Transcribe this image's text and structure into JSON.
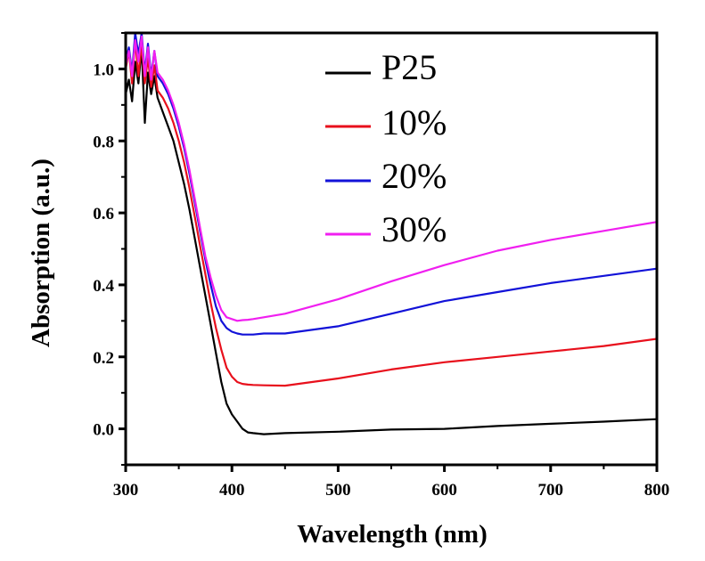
{
  "chart_data": {
    "type": "line",
    "title": "",
    "xlabel": "Wavelength (nm)",
    "ylabel": "Absorption (a.u.)",
    "xlim": [
      300,
      800
    ],
    "ylim": [
      -0.1,
      1.1
    ],
    "x_ticks": [
      300,
      400,
      500,
      600,
      700,
      800
    ],
    "x_tick_labels": [
      "300",
      "400",
      "500",
      "600",
      "700",
      "800"
    ],
    "y_ticks": [
      0.0,
      0.2,
      0.4,
      0.6,
      0.8,
      1.0
    ],
    "y_tick_labels": [
      "0.0",
      "0.2",
      "0.4",
      "0.6",
      "0.8",
      "1.0"
    ],
    "grid": false,
    "legend_position": "top-center",
    "series": [
      {
        "name": "P25",
        "color": "#000000",
        "x": [
          300,
          303,
          306,
          309,
          312,
          315,
          318,
          321,
          324,
          327,
          330,
          335,
          340,
          345,
          350,
          355,
          360,
          365,
          370,
          375,
          380,
          385,
          390,
          395,
          400,
          405,
          410,
          415,
          420,
          430,
          450,
          500,
          550,
          600,
          650,
          700,
          750,
          800
        ],
        "y": [
          0.93,
          0.97,
          0.91,
          1.02,
          0.96,
          1.06,
          0.85,
          0.99,
          0.93,
          0.98,
          0.92,
          0.88,
          0.84,
          0.8,
          0.74,
          0.68,
          0.61,
          0.53,
          0.45,
          0.37,
          0.29,
          0.21,
          0.13,
          0.07,
          0.04,
          0.02,
          0.0,
          -0.01,
          -0.012,
          -0.015,
          -0.012,
          -0.008,
          -0.002,
          0.0,
          0.008,
          0.014,
          0.02,
          0.027
        ]
      },
      {
        "name": "10%",
        "color": "#e8101c",
        "x": [
          300,
          303,
          306,
          309,
          312,
          315,
          318,
          321,
          324,
          327,
          330,
          335,
          340,
          345,
          350,
          355,
          360,
          365,
          370,
          375,
          380,
          385,
          390,
          395,
          400,
          405,
          410,
          415,
          420,
          430,
          450,
          500,
          550,
          600,
          650,
          700,
          750,
          800
        ],
        "y": [
          1.0,
          1.05,
          0.96,
          1.08,
          0.98,
          1.07,
          0.96,
          1.03,
          0.95,
          1.01,
          0.94,
          0.92,
          0.89,
          0.85,
          0.8,
          0.74,
          0.67,
          0.59,
          0.51,
          0.43,
          0.35,
          0.28,
          0.22,
          0.17,
          0.145,
          0.13,
          0.125,
          0.123,
          0.122,
          0.121,
          0.12,
          0.14,
          0.165,
          0.185,
          0.2,
          0.215,
          0.23,
          0.25
        ]
      },
      {
        "name": "20%",
        "color": "#1212d8",
        "x": [
          300,
          303,
          306,
          309,
          312,
          315,
          318,
          321,
          324,
          327,
          330,
          335,
          340,
          345,
          350,
          355,
          360,
          365,
          370,
          375,
          380,
          385,
          390,
          395,
          400,
          405,
          410,
          415,
          420,
          430,
          450,
          500,
          550,
          600,
          650,
          700,
          750,
          800
        ],
        "y": [
          1.02,
          1.06,
          0.99,
          1.1,
          1.04,
          1.1,
          0.99,
          1.07,
          0.98,
          1.05,
          0.98,
          0.96,
          0.93,
          0.89,
          0.84,
          0.78,
          0.71,
          0.63,
          0.55,
          0.47,
          0.4,
          0.34,
          0.3,
          0.28,
          0.27,
          0.265,
          0.262,
          0.262,
          0.262,
          0.265,
          0.265,
          0.285,
          0.32,
          0.355,
          0.38,
          0.405,
          0.425,
          0.445
        ]
      },
      {
        "name": "30%",
        "color": "#f01ff0",
        "x": [
          300,
          303,
          306,
          309,
          312,
          315,
          318,
          321,
          324,
          327,
          330,
          335,
          340,
          345,
          350,
          355,
          360,
          365,
          370,
          375,
          380,
          385,
          390,
          395,
          400,
          405,
          410,
          415,
          420,
          430,
          450,
          500,
          550,
          600,
          650,
          700,
          750,
          800
        ],
        "y": [
          1.01,
          1.05,
          0.98,
          1.08,
          1.02,
          1.09,
          0.98,
          1.06,
          0.97,
          1.05,
          0.99,
          0.97,
          0.94,
          0.9,
          0.85,
          0.79,
          0.72,
          0.64,
          0.56,
          0.48,
          0.42,
          0.37,
          0.33,
          0.31,
          0.305,
          0.3,
          0.302,
          0.303,
          0.305,
          0.31,
          0.32,
          0.36,
          0.41,
          0.455,
          0.495,
          0.525,
          0.55,
          0.575
        ]
      }
    ]
  }
}
